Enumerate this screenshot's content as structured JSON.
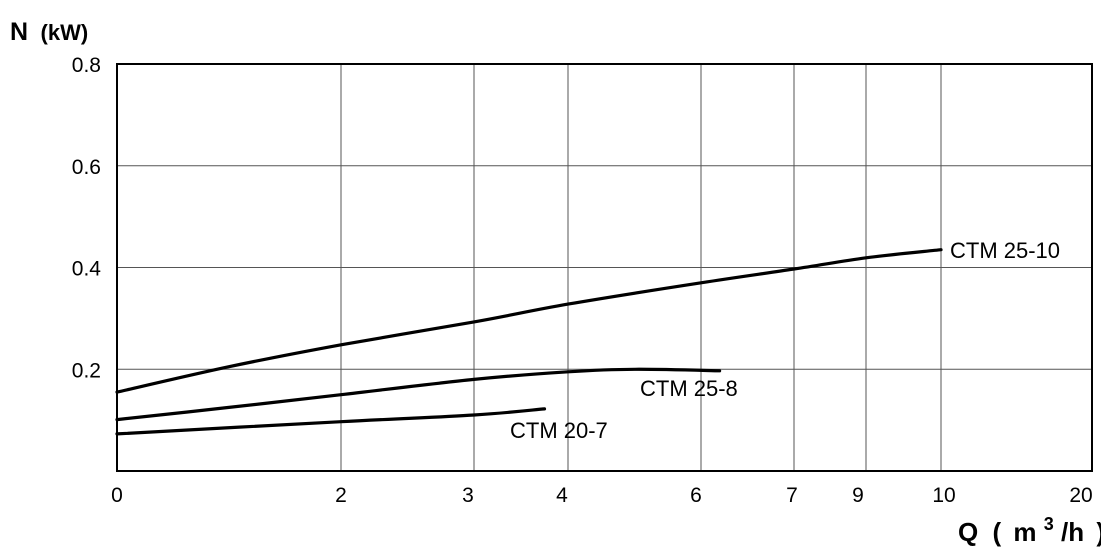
{
  "chart_data": {
    "type": "line",
    "ylabel": {
      "symbol": "N",
      "unit": "(kW)"
    },
    "xlabel": {
      "symbol": "Q",
      "open": "(",
      "unit_base": "m",
      "unit_sup": "3",
      "unit_tail": "/h",
      "close": ")"
    },
    "ylim": [
      0,
      0.8
    ],
    "yticks": [
      {
        "value": 0.2,
        "label": "0.2"
      },
      {
        "value": 0.4,
        "label": "0.4"
      },
      {
        "value": 0.6,
        "label": "0.6"
      },
      {
        "value": 0.8,
        "label": "0.8"
      }
    ],
    "x_axis_scale": "non-linear (tick spacing not uniform)",
    "xticks": [
      "0",
      "2",
      "3",
      "4",
      "6",
      "7",
      "9",
      "10",
      "20"
    ],
    "grid": true,
    "series": [
      {
        "name": "CTM 25-10",
        "x": [
          0,
          1,
          2,
          3,
          4,
          6,
          7,
          9,
          10
        ],
        "y": [
          0.155,
          0.205,
          0.248,
          0.293,
          0.328,
          0.37,
          0.397,
          0.419,
          0.435
        ]
      },
      {
        "name": "CTM 25-8",
        "x": [
          0,
          1,
          2,
          3,
          4,
          5,
          6.2
        ],
        "y": [
          0.101,
          0.125,
          0.15,
          0.18,
          0.195,
          0.2,
          0.197
        ]
      },
      {
        "name": "CTM 20-7",
        "x": [
          0,
          2,
          3,
          3.75
        ],
        "y": [
          0.073,
          0.097,
          0.11,
          0.122
        ]
      }
    ]
  }
}
